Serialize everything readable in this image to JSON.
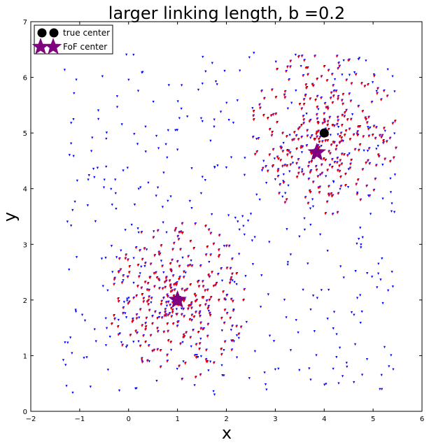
{
  "chart_data": {
    "type": "scatter",
    "title": "larger linking length, b =0.2",
    "xlabel": "x",
    "ylabel": "y",
    "xlim": [
      -2,
      6
    ],
    "ylim": [
      0,
      7
    ],
    "xticks": [
      "−2",
      "−1",
      "0",
      "1",
      "2",
      "3",
      "4",
      "5",
      "6"
    ],
    "yticks": [
      "0",
      "1",
      "2",
      "3",
      "4",
      "5",
      "6",
      "7"
    ],
    "grid": false,
    "legend_placement": "top-left",
    "legend": [
      {
        "label": "true center",
        "marker": "circle",
        "color": "#000000"
      },
      {
        "label": "FoF center",
        "marker": "star",
        "color": "#800080"
      }
    ],
    "colors": {
      "background_points": "#0000ff",
      "group_points": "#ff0000",
      "true_center": "#000000",
      "fof_center": "#800080"
    },
    "true_centers": [
      {
        "x": 1.0,
        "y": 2.0
      },
      {
        "x": 4.0,
        "y": 5.0
      }
    ],
    "fof_centers": [
      {
        "x": 1.0,
        "y": 2.0
      },
      {
        "x": 3.85,
        "y": 4.65
      }
    ],
    "point_cloud": {
      "background_count": 420,
      "background_xrange": [
        -1.35,
        5.45
      ],
      "background_yrange": [
        0.3,
        6.45
      ],
      "clusters": [
        {
          "center_x": 1.0,
          "center_y": 2.0,
          "radius": 1.45,
          "count": 330
        },
        {
          "center_x": 4.0,
          "center_y": 5.0,
          "radius": 1.5,
          "count": 340
        }
      ]
    }
  }
}
